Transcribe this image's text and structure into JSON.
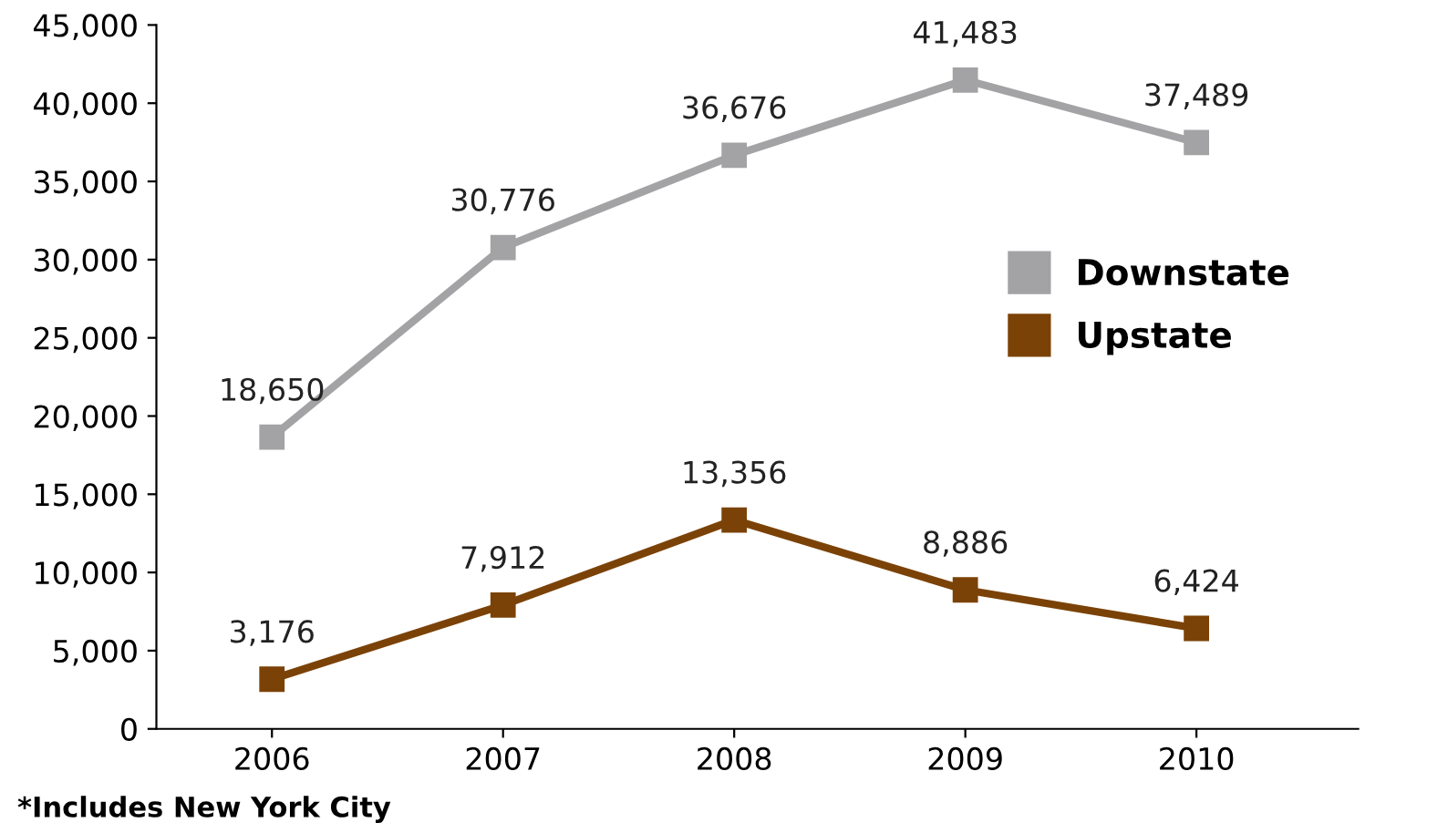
{
  "chart_data": {
    "type": "line",
    "categories": [
      "2006",
      "2007",
      "2008",
      "2009",
      "2010"
    ],
    "series": [
      {
        "name": "Downstate",
        "color": "#a3a3a5",
        "values": [
          18650,
          30776,
          36676,
          41483,
          37489
        ],
        "value_labels": [
          "18,650",
          "30,776",
          "36,676",
          "41,483",
          "37,489"
        ]
      },
      {
        "name": "Upstate",
        "color": "#7b4207",
        "values": [
          3176,
          7912,
          13356,
          8886,
          6424
        ],
        "value_labels": [
          "3,176",
          "7,912",
          "13,356",
          "8,886",
          "6,424"
        ]
      }
    ],
    "ylim": [
      0,
      45000
    ],
    "yticks": [
      0,
      {
        "value": 5000,
        "label": "5,000"
      },
      {
        "value": 10000,
        "label": "10,000"
      },
      {
        "value": 15000,
        "label": "15,000"
      },
      {
        "value": 20000,
        "label": "20,000"
      },
      {
        "value": 25000,
        "label": "25,000"
      },
      {
        "value": 30000,
        "label": "30,000"
      },
      {
        "value": 35000,
        "label": "35,000"
      },
      {
        "value": 40000,
        "label": "40,000"
      },
      {
        "value": 45000,
        "label": "45,000"
      }
    ],
    "marker": "square",
    "line_style": "solid",
    "legend": "right",
    "grid": false,
    "annotations": [
      "*Includes New York City"
    ]
  }
}
